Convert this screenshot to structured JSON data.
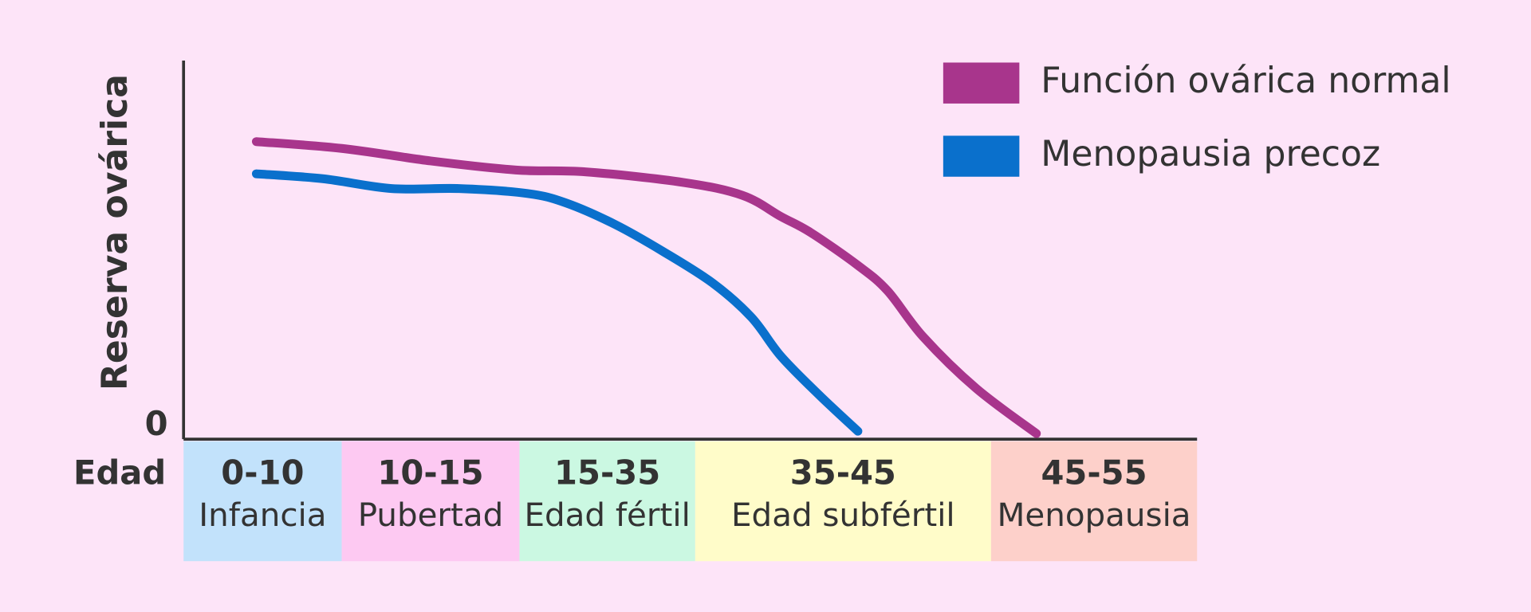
{
  "chart_data": {
    "type": "line",
    "y_axis_label": "Reserva ovárica",
    "x_axis_label": "Edad",
    "ylim": [
      0,
      100
    ],
    "yticks": [
      0
    ],
    "xlim": [
      0,
      55
    ],
    "band_edges": [
      0,
      10,
      15,
      35,
      45,
      55
    ],
    "bands": [
      {
        "range": "0-10",
        "label": "Infancia",
        "color": "#c2e2fb"
      },
      {
        "range": "10-15",
        "label": "Pubertad",
        "color": "#fdc9f2"
      },
      {
        "range": "15-35",
        "label": "Edad fértil",
        "color": "#cbf8e2"
      },
      {
        "range": "35-45",
        "label": "Edad subfértil",
        "color": "#fffcc9"
      },
      {
        "range": "45-55",
        "label": "Menopausia",
        "color": "#fdd0ca"
      }
    ],
    "series": [
      {
        "name": "Función ovárica normal",
        "color": "#a8358c",
        "x": [
          4.6,
          10,
          12.5,
          14.9,
          22.6,
          33.7,
          36.6,
          37.9,
          38.9,
          40.5,
          41.5,
          42.7,
          44.5,
          47.2
        ],
        "values": [
          78.6,
          76.8,
          73.5,
          71.1,
          70.6,
          67.8,
          64.4,
          58.8,
          54.6,
          45.9,
          39.2,
          27.1,
          13.4,
          1.5
        ]
      },
      {
        "name": "Menopausia precoz",
        "color": "#0a70cc",
        "x": [
          4.6,
          8.8,
          11.4,
          13.3,
          15.9,
          20.3,
          25.9,
          31.4,
          35.6,
          36.9,
          37.9,
          39.2,
          40.5
        ],
        "values": [
          70.1,
          68.8,
          66.2,
          66.2,
          64.9,
          62.4,
          56.7,
          49.5,
          41.2,
          32.2,
          21.9,
          11.6,
          2.1
        ]
      }
    ]
  }
}
